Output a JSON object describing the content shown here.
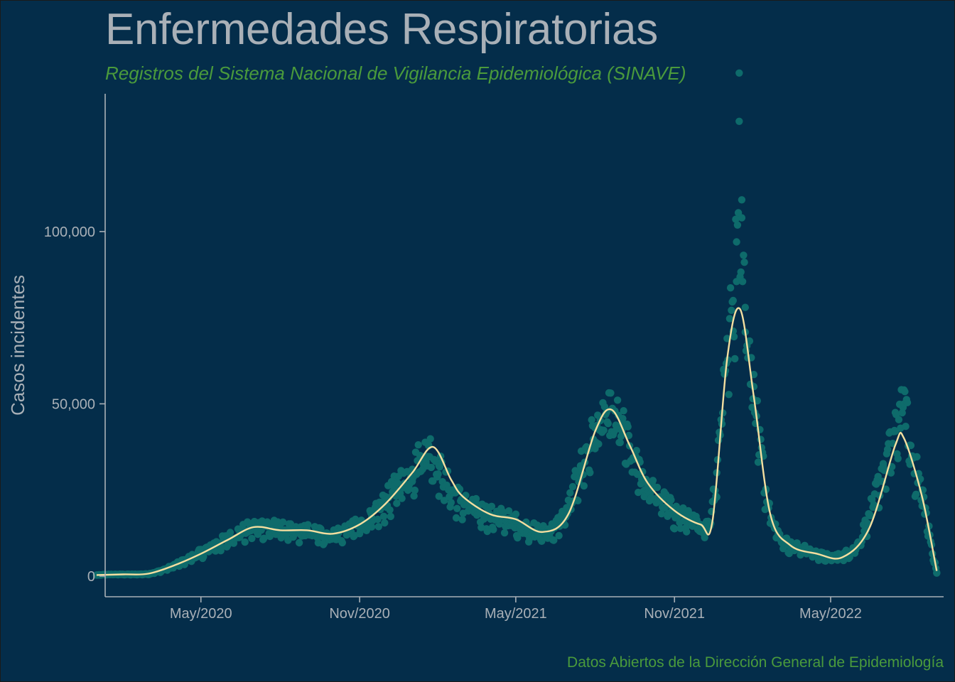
{
  "chart_data": {
    "type": "scatter",
    "title": "Enfermedades Respiratorias",
    "subtitle": "Registros del Sistema Nacional de Vigilancia Epidemiológica (SINAVE)",
    "caption": "Datos Abiertos de la Dirección General de Epidemiología",
    "xlabel": "",
    "ylabel": "Casos incidentes",
    "x_ticks": [
      "May/2020",
      "Nov/2020",
      "May/2021",
      "Nov/2021",
      "May/2022"
    ],
    "y_ticks": [
      "0",
      "50,000",
      "100,000"
    ],
    "xlim": [
      "2020-01-11",
      "2022-09-09"
    ],
    "ylim": [
      -6000,
      140000
    ],
    "colors": {
      "points": "#0e6b6b",
      "smooth": "#f5dfa0",
      "axis": "#a9b0b7",
      "background": "#042d4a"
    },
    "series": [
      {
        "type": "scatter",
        "points": [
          [
            "2020-01-01",
            300
          ],
          [
            "2020-01-15",
            500
          ],
          [
            "2020-02-01",
            500
          ],
          [
            "2020-02-15",
            500
          ],
          [
            "2020-03-01",
            600
          ],
          [
            "2020-03-15",
            1500
          ],
          [
            "2020-04-01",
            3200
          ],
          [
            "2020-04-15",
            5000
          ],
          [
            "2020-05-01",
            7000
          ],
          [
            "2020-05-15",
            9000
          ],
          [
            "2020-06-01",
            11000
          ],
          [
            "2020-06-15",
            13000
          ],
          [
            "2020-07-01",
            14500
          ],
          [
            "2020-07-15",
            15000
          ],
          [
            "2020-08-01",
            14000
          ],
          [
            "2020-08-15",
            13200
          ],
          [
            "2020-09-01",
            13500
          ],
          [
            "2020-09-15",
            12800
          ],
          [
            "2020-10-01",
            12300
          ],
          [
            "2020-10-15",
            13500
          ],
          [
            "2020-11-01",
            15000
          ],
          [
            "2020-11-15",
            17000
          ],
          [
            "2020-12-01",
            22000
          ],
          [
            "2020-12-15",
            27000
          ],
          [
            "2021-01-01",
            31000
          ],
          [
            "2021-01-10",
            35000
          ],
          [
            "2021-01-20",
            38000
          ],
          [
            "2021-02-01",
            32000
          ],
          [
            "2021-02-15",
            25000
          ],
          [
            "2021-03-01",
            22000
          ],
          [
            "2021-03-15",
            20000
          ],
          [
            "2021-04-01",
            18000
          ],
          [
            "2021-04-15",
            17500
          ],
          [
            "2021-05-01",
            16000
          ],
          [
            "2021-05-15",
            14000
          ],
          [
            "2021-06-01",
            13000
          ],
          [
            "2021-06-15",
            14000
          ],
          [
            "2021-07-01",
            20000
          ],
          [
            "2021-07-15",
            32000
          ],
          [
            "2021-08-01",
            43000
          ],
          [
            "2021-08-15",
            48000
          ],
          [
            "2021-09-01",
            44000
          ],
          [
            "2021-09-15",
            34000
          ],
          [
            "2021-10-01",
            27000
          ],
          [
            "2021-10-15",
            23000
          ],
          [
            "2021-11-01",
            19000
          ],
          [
            "2021-11-15",
            17000
          ],
          [
            "2021-12-01",
            15000
          ],
          [
            "2021-12-10",
            14500
          ],
          [
            "2021-12-20",
            30000
          ],
          [
            "2021-12-28",
            60000
          ],
          [
            "2022-01-08",
            80000
          ],
          [
            "2022-01-12",
            97000
          ],
          [
            "2022-01-15",
            132000
          ],
          [
            "2022-01-18",
            104000
          ],
          [
            "2022-01-22",
            78000
          ],
          [
            "2022-02-01",
            55000
          ],
          [
            "2022-02-15",
            25000
          ],
          [
            "2022-03-01",
            12000
          ],
          [
            "2022-03-15",
            9000
          ],
          [
            "2022-04-01",
            8000
          ],
          [
            "2022-04-15",
            6500
          ],
          [
            "2022-05-01",
            5500
          ],
          [
            "2022-05-15",
            6000
          ],
          [
            "2022-06-01",
            9000
          ],
          [
            "2022-06-15",
            18000
          ],
          [
            "2022-07-01",
            32000
          ],
          [
            "2022-07-15",
            42000
          ],
          [
            "2022-07-25",
            54000
          ],
          [
            "2022-08-01",
            38000
          ],
          [
            "2022-08-15",
            25000
          ],
          [
            "2022-08-25",
            10000
          ],
          [
            "2022-09-01",
            1000
          ]
        ]
      },
      {
        "type": "line",
        "smooth": true,
        "points": [
          [
            "2020-01-01",
            300
          ],
          [
            "2020-02-01",
            500
          ],
          [
            "2020-03-01",
            700
          ],
          [
            "2020-04-01",
            3200
          ],
          [
            "2020-05-01",
            6500
          ],
          [
            "2020-06-01",
            10500
          ],
          [
            "2020-07-01",
            14200
          ],
          [
            "2020-08-01",
            13300
          ],
          [
            "2020-09-01",
            13300
          ],
          [
            "2020-10-01",
            12300
          ],
          [
            "2020-11-01",
            15000
          ],
          [
            "2020-12-01",
            21000
          ],
          [
            "2021-01-01",
            30000
          ],
          [
            "2021-01-25",
            37500
          ],
          [
            "2021-02-15",
            28000
          ],
          [
            "2021-03-01",
            23000
          ],
          [
            "2021-04-01",
            18000
          ],
          [
            "2021-05-01",
            16500
          ],
          [
            "2021-06-01",
            12800
          ],
          [
            "2021-07-01",
            18000
          ],
          [
            "2021-08-01",
            42000
          ],
          [
            "2021-08-20",
            48300
          ],
          [
            "2021-09-10",
            38000
          ],
          [
            "2021-10-01",
            27000
          ],
          [
            "2021-11-01",
            19000
          ],
          [
            "2021-12-01",
            15000
          ],
          [
            "2021-12-15",
            16000
          ],
          [
            "2022-01-01",
            63000
          ],
          [
            "2022-01-16",
            77500
          ],
          [
            "2022-02-01",
            52000
          ],
          [
            "2022-02-20",
            18000
          ],
          [
            "2022-03-15",
            9000
          ],
          [
            "2022-04-15",
            6500
          ],
          [
            "2022-05-15",
            5500
          ],
          [
            "2022-06-15",
            14000
          ],
          [
            "2022-07-15",
            38000
          ],
          [
            "2022-07-25",
            40000
          ],
          [
            "2022-08-15",
            23000
          ],
          [
            "2022-09-01",
            1500
          ]
        ]
      }
    ]
  }
}
